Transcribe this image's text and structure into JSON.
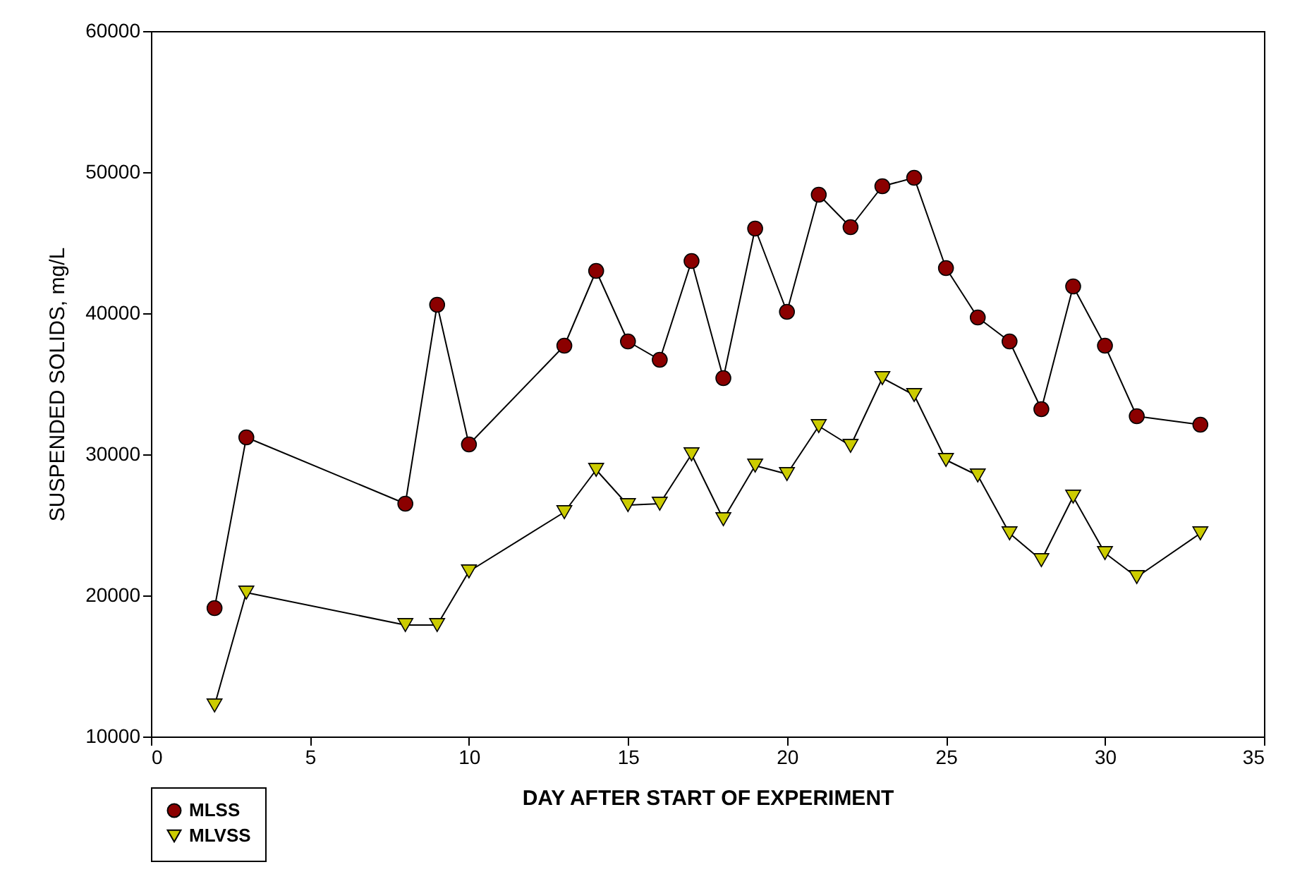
{
  "chart_data": {
    "type": "line",
    "xlabel": "DAY AFTER START OF EXPERIMENT",
    "ylabel": "SUSPENDED SOLIDS, mg/L",
    "xlim": [
      0,
      35
    ],
    "xticks": [
      0,
      5,
      10,
      15,
      20,
      25,
      30,
      35
    ],
    "ylim": [
      10000,
      60000
    ],
    "yticks": [
      10000,
      20000,
      30000,
      40000,
      50000,
      60000
    ],
    "x": [
      2,
      3,
      8,
      9,
      10,
      13,
      14,
      15,
      16,
      17,
      18,
      19,
      20,
      21,
      22,
      23,
      24,
      25,
      26,
      27,
      28,
      29,
      30,
      31,
      33
    ],
    "grid": false,
    "legend": "bottom left",
    "line_style": "solid",
    "series": [
      {
        "name": "MLSS",
        "color": "#8b0000",
        "marker": "circle",
        "values": [
          19100,
          31200,
          26500,
          40600,
          30700,
          37700,
          43000,
          38000,
          36700,
          43700,
          35400,
          46000,
          40100,
          48400,
          46100,
          49000,
          49600,
          43200,
          39700,
          38000,
          33200,
          41900,
          37700,
          32700,
          32100
        ]
      },
      {
        "name": "MLVSS",
        "color": "#cccc00",
        "marker": "triangle",
        "values": [
          12200,
          20200,
          17900,
          17900,
          21700,
          25900,
          28900,
          26400,
          26500,
          30000,
          25400,
          29200,
          28600,
          32000,
          30600,
          35400,
          34200,
          29600,
          28500,
          24400,
          22500,
          27000,
          23000,
          21300,
          24400
        ]
      }
    ]
  }
}
